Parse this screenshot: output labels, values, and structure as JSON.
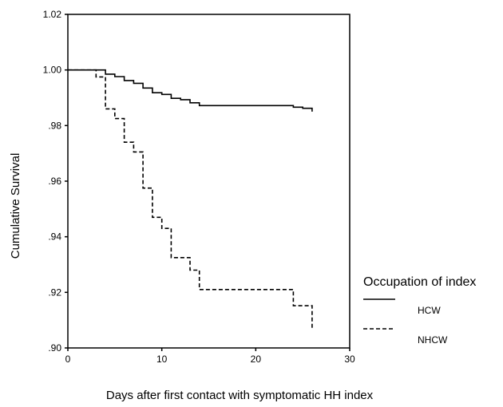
{
  "chart_data": {
    "type": "line",
    "title": "",
    "xlabel": "Days after first contact with symptomatic HH index",
    "ylabel": "Cumulative Survival",
    "xlim": [
      0,
      30
    ],
    "ylim": [
      0.9,
      1.02
    ],
    "x_ticks": [
      {
        "value": 0,
        "label": "0"
      },
      {
        "value": 10,
        "label": "10"
      },
      {
        "value": 20,
        "label": "20"
      },
      {
        "value": 30,
        "label": "30"
      }
    ],
    "y_ticks": [
      {
        "value": 0.9,
        "label": ".90"
      },
      {
        "value": 0.92,
        "label": ".92"
      },
      {
        "value": 0.94,
        "label": ".94"
      },
      {
        "value": 0.96,
        "label": ".96"
      },
      {
        "value": 0.98,
        "label": ".98"
      },
      {
        "value": 1.0,
        "label": "1.00"
      },
      {
        "value": 1.02,
        "label": "1.02"
      }
    ],
    "grid": false,
    "step": true,
    "legend": {
      "title": "Occupation of index",
      "placement": "right"
    },
    "series": [
      {
        "name": "HCW",
        "style": "solid",
        "color": "#000000",
        "points": [
          [
            0,
            1.0
          ],
          [
            4,
            0.9985
          ],
          [
            5,
            0.9976
          ],
          [
            6,
            0.9962
          ],
          [
            7,
            0.9952
          ],
          [
            8,
            0.9935
          ],
          [
            9,
            0.9918
          ],
          [
            10,
            0.9912
          ],
          [
            11,
            0.9898
          ],
          [
            12,
            0.9893
          ],
          [
            13,
            0.9882
          ],
          [
            14,
            0.9872
          ],
          [
            24,
            0.9866
          ],
          [
            25,
            0.9862
          ],
          [
            26,
            0.985
          ]
        ]
      },
      {
        "name": "NHCW",
        "style": "dashed",
        "color": "#000000",
        "points": [
          [
            0,
            1.0
          ],
          [
            3,
            0.9975
          ],
          [
            4,
            0.986
          ],
          [
            5,
            0.9825
          ],
          [
            6,
            0.974
          ],
          [
            7,
            0.9705
          ],
          [
            8,
            0.9575
          ],
          [
            9,
            0.947
          ],
          [
            10,
            0.943
          ],
          [
            11,
            0.9325
          ],
          [
            13,
            0.928
          ],
          [
            14,
            0.921
          ],
          [
            24,
            0.9152
          ],
          [
            26,
            0.907
          ]
        ]
      }
    ]
  }
}
